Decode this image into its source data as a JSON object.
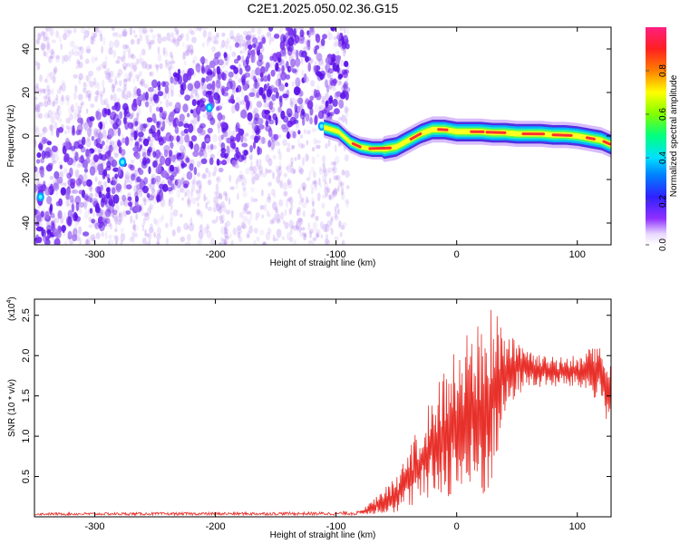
{
  "title": "C2E1.2025.050.02.36.G15",
  "colors": {
    "line": "#e8302a",
    "axis": "#000000",
    "spectrogram_track": [
      "#00c8ff",
      "#40ff40",
      "#ffff00",
      "#ff3030"
    ],
    "spectrogram_noise": "#6a30e0"
  },
  "chart_data": [
    {
      "type": "heatmap",
      "title": "C2E1.2025.050.02.36.G15",
      "xlabel": "Height of straight line (km)",
      "ylabel": "Frequency (Hz)",
      "xlim": [
        -350,
        128
      ],
      "ylim": [
        -50,
        50
      ],
      "x_ticks": [
        -300,
        -200,
        -100,
        0,
        100
      ],
      "y_ticks": [
        -40,
        -20,
        0,
        20,
        40
      ],
      "colorbar": {
        "label": "Normalized spectral amplitude",
        "range": [
          0,
          1
        ],
        "ticks": [
          "0.0",
          "0.2",
          "0.4",
          "0.6",
          "0.8"
        ],
        "tick_values": [
          0,
          0.2,
          0.4,
          0.6,
          0.8
        ]
      },
      "ridge": {
        "x": [
          -110,
          -98,
          -88,
          -80,
          -70,
          -60,
          -50,
          -40,
          -30,
          -20,
          -10,
          0,
          10,
          20,
          30,
          40,
          50,
          60,
          70,
          80,
          90,
          100,
          110,
          120,
          128
        ],
        "y": [
          4,
          2,
          -3,
          -5,
          -6,
          -6,
          -5,
          -2,
          1,
          3,
          3,
          2,
          2,
          2,
          1.5,
          1.5,
          1,
          1,
          1,
          0.5,
          0.5,
          0,
          -1,
          -2,
          -4
        ]
      },
      "noise_region": {
        "x_range": [
          -350,
          -90
        ],
        "trend_start": [
          -350,
          -30
        ],
        "trend_end": [
          -90,
          40
        ]
      }
    },
    {
      "type": "line",
      "xlabel": "Height of straight line (km)",
      "ylabel": "SNR (10 * v/v)",
      "y_multiplier_label": "(x10",
      "y_multiplier_exp": "4",
      "y_multiplier_close": ")",
      "xlim": [
        -350,
        128
      ],
      "ylim": [
        0,
        2.7
      ],
      "x_ticks": [
        -300,
        -200,
        -100,
        0,
        100
      ],
      "y_ticks": [
        "0.5",
        "1.0",
        "1.5",
        "2.0",
        "2.5"
      ],
      "y_tick_values": [
        0.5,
        1.0,
        1.5,
        2.0,
        2.5
      ],
      "envelope": {
        "x": [
          -350,
          -100,
          -80,
          -70,
          -60,
          -50,
          -40,
          -30,
          -20,
          -10,
          0,
          10,
          20,
          30,
          40,
          50,
          60,
          70,
          80,
          90,
          100,
          110,
          120,
          128
        ],
        "upper": [
          0.05,
          0.06,
          0.08,
          0.2,
          0.35,
          0.5,
          0.8,
          1.2,
          1.5,
          1.9,
          2.1,
          2.3,
          2.5,
          2.7,
          2.3,
          2.2,
          2.1,
          2.0,
          2.0,
          2.0,
          2.0,
          2.1,
          2.1,
          1.9
        ],
        "lower": [
          0.02,
          0.02,
          0.02,
          0.03,
          0.04,
          0.05,
          0.1,
          0.15,
          0.2,
          0.25,
          0.2,
          0.15,
          0.1,
          0.4,
          1.2,
          1.5,
          1.6,
          1.6,
          1.6,
          1.6,
          1.6,
          1.5,
          1.4,
          1.0
        ]
      }
    }
  ]
}
